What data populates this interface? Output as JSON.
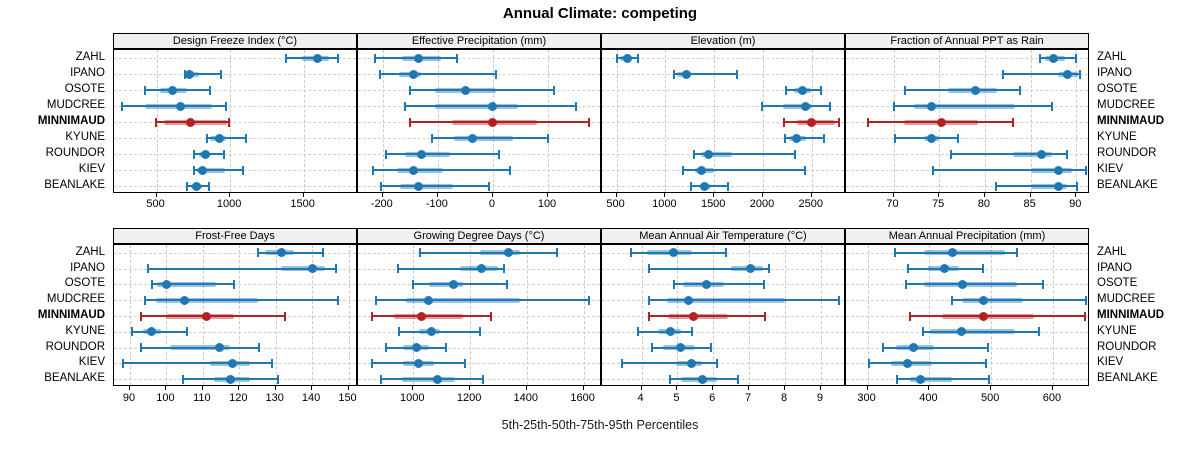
{
  "title": "Annual Climate: competing",
  "caption": "5th-25th-50th-75th-95th Percentiles",
  "stations": [
    "ZAHL",
    "IPANO",
    "OSOTE",
    "MUDCREE",
    "MINNIMAUD",
    "KYUNE",
    "ROUNDOR",
    "KIEV",
    "BEANLAKE"
  ],
  "highlight_station": "MINNIMAUD",
  "colors": {
    "normal": "#1f77b4",
    "highlight": "#b22222",
    "grid": "#cfcfcf",
    "strip_bg": "#f0f0f0",
    "border": "#000000"
  },
  "chart_data": [
    {
      "type": "scatter",
      "subtype": "percentile_interval_dotplot",
      "title": "Design Freeze Index (°C)",
      "row": 0,
      "col": 0,
      "xlim": [
        210,
        1870
      ],
      "xticks": [
        500,
        1000,
        1500
      ],
      "grid": "dashed",
      "series": [
        {
          "name": "ZAHL",
          "percentiles": [
            1380,
            1490,
            1595,
            1670,
            1735
          ]
        },
        {
          "name": "IPANO",
          "percentiles": [
            695,
            705,
            725,
            790,
            940
          ]
        },
        {
          "name": "OSOTE",
          "percentiles": [
            420,
            520,
            605,
            710,
            865
          ]
        },
        {
          "name": "MUDCREE",
          "percentiles": [
            265,
            420,
            665,
            875,
            975
          ]
        },
        {
          "name": "MINNIMAUD",
          "percentiles": [
            495,
            550,
            730,
            980,
            995
          ]
        },
        {
          "name": "KYUNE",
          "percentiles": [
            845,
            865,
            925,
            975,
            1105
          ]
        },
        {
          "name": "ROUNDOR",
          "percentiles": [
            755,
            790,
            830,
            865,
            960
          ]
        },
        {
          "name": "KIEV",
          "percentiles": [
            755,
            775,
            815,
            965,
            1090
          ]
        },
        {
          "name": "BEANLAKE",
          "percentiles": [
            705,
            735,
            770,
            810,
            855
          ]
        }
      ]
    },
    {
      "type": "scatter",
      "subtype": "percentile_interval_dotplot",
      "title": "Effective Precipitation (mm)",
      "row": 0,
      "col": 1,
      "xlim": [
        -245,
        198
      ],
      "xticks": [
        -200,
        -100,
        0,
        100
      ],
      "grid": "dashed",
      "series": [
        {
          "name": "ZAHL",
          "percentiles": [
            -215,
            -165,
            -135,
            -95,
            -65
          ]
        },
        {
          "name": "IPANO",
          "percentiles": [
            -205,
            -170,
            -145,
            -130,
            5
          ]
        },
        {
          "name": "OSOTE",
          "percentiles": [
            -150,
            -105,
            -50,
            5,
            110
          ]
        },
        {
          "name": "MUDCREE",
          "percentiles": [
            -160,
            -105,
            0,
            45,
            150
          ]
        },
        {
          "name": "MINNIMAUD",
          "percentiles": [
            -150,
            -75,
            0,
            80,
            175
          ]
        },
        {
          "name": "KYUNE",
          "percentiles": [
            -110,
            -70,
            -38,
            37,
            100
          ]
        },
        {
          "name": "ROUNDOR",
          "percentiles": [
            -195,
            -160,
            -130,
            -77,
            10
          ]
        },
        {
          "name": "KIEV",
          "percentiles": [
            -218,
            -175,
            -145,
            -90,
            30
          ]
        },
        {
          "name": "BEANLAKE",
          "percentiles": [
            -203,
            -168,
            -135,
            -72,
            -7
          ]
        }
      ]
    },
    {
      "type": "scatter",
      "subtype": "percentile_interval_dotplot",
      "title": "Elevation (m)",
      "row": 0,
      "col": 2,
      "xlim": [
        350,
        2850
      ],
      "xticks": [
        500,
        1000,
        1500,
        2000,
        2500
      ],
      "grid": "dashed",
      "series": [
        {
          "name": "ZAHL",
          "percentiles": [
            505,
            530,
            610,
            655,
            720
          ]
        },
        {
          "name": "IPANO",
          "percentiles": [
            1090,
            1120,
            1215,
            1260,
            1730
          ]
        },
        {
          "name": "OSOTE",
          "percentiles": [
            2230,
            2320,
            2400,
            2490,
            2590
          ]
        },
        {
          "name": "MUDCREE",
          "percentiles": [
            1990,
            2200,
            2430,
            2500,
            2690
          ]
        },
        {
          "name": "MINNIMAUD",
          "percentiles": [
            2210,
            2350,
            2500,
            2740,
            2780
          ]
        },
        {
          "name": "KYUNE",
          "percentiles": [
            2225,
            2270,
            2345,
            2440,
            2620
          ]
        },
        {
          "name": "ROUNDOR",
          "percentiles": [
            1290,
            1360,
            1445,
            1680,
            2330
          ]
        },
        {
          "name": "KIEV",
          "percentiles": [
            1180,
            1300,
            1370,
            1500,
            2430
          ]
        },
        {
          "name": "BEANLAKE",
          "percentiles": [
            1265,
            1350,
            1400,
            1470,
            1640
          ]
        }
      ]
    },
    {
      "type": "scatter",
      "subtype": "percentile_interval_dotplot",
      "title": "Fraction of Annual PPT as Rain",
      "row": 0,
      "col": 3,
      "xlim": [
        64.8,
        91.5
      ],
      "xticks": [
        70,
        75,
        80,
        85,
        90
      ],
      "grid": "dashed",
      "series": [
        {
          "name": "ZAHL",
          "percentiles": [
            86,
            86.6,
            87.5,
            88.8,
            90
          ]
        },
        {
          "name": "IPANO",
          "percentiles": [
            82,
            88,
            89,
            90.2,
            90.4
          ]
        },
        {
          "name": "OSOTE",
          "percentiles": [
            71.3,
            76,
            79,
            81.3,
            83.8
          ]
        },
        {
          "name": "MUDCREE",
          "percentiles": [
            70,
            72.2,
            74.1,
            83.3,
            87.3
          ]
        },
        {
          "name": "MINNIMAUD",
          "percentiles": [
            67.2,
            71.1,
            75.2,
            79.3,
            83.1
          ]
        },
        {
          "name": "KYUNE",
          "percentiles": [
            70.2,
            73.3,
            74.2,
            75,
            77.1
          ]
        },
        {
          "name": "ROUNDOR",
          "percentiles": [
            76.3,
            83.1,
            86.2,
            87.3,
            89
          ]
        },
        {
          "name": "KIEV",
          "percentiles": [
            74.3,
            85,
            88,
            89.5,
            91.1
          ]
        },
        {
          "name": "BEANLAKE",
          "percentiles": [
            81.2,
            85,
            88,
            89,
            90.1
          ]
        }
      ]
    },
    {
      "type": "scatter",
      "subtype": "percentile_interval_dotplot",
      "title": "Frost-Free Days",
      "row": 1,
      "col": 0,
      "xlim": [
        85.6,
        152.6
      ],
      "xticks": [
        90,
        100,
        110,
        120,
        130,
        140,
        150
      ],
      "grid": "dashed",
      "series": [
        {
          "name": "ZAHL",
          "percentiles": [
            125,
            127,
            131.5,
            135,
            143
          ]
        },
        {
          "name": "IPANO",
          "percentiles": [
            95,
            131.5,
            140,
            143.5,
            146.5
          ]
        },
        {
          "name": "OSOTE",
          "percentiles": [
            96,
            97.5,
            100,
            113.5,
            118.5
          ]
        },
        {
          "name": "MUDCREE",
          "percentiles": [
            94,
            97,
            105,
            125,
            147
          ]
        },
        {
          "name": "MINNIMAUD",
          "percentiles": [
            93,
            100,
            111,
            118.5,
            132.5
          ]
        },
        {
          "name": "KYUNE",
          "percentiles": [
            90.5,
            93.5,
            96,
            98.5,
            105.5
          ]
        },
        {
          "name": "ROUNDOR",
          "percentiles": [
            93,
            101,
            114.5,
            117.5,
            125.5
          ]
        },
        {
          "name": "KIEV",
          "percentiles": [
            88,
            112,
            118,
            123,
            129
          ]
        },
        {
          "name": "BEANLAKE",
          "percentiles": [
            104.5,
            113,
            117.5,
            123,
            130.5
          ]
        }
      ]
    },
    {
      "type": "scatter",
      "subtype": "percentile_interval_dotplot",
      "title": "Growing Degree Days (°C)",
      "row": 1,
      "col": 1,
      "xlim": [
        805,
        1665
      ],
      "xticks": [
        1000,
        1200,
        1400,
        1600
      ],
      "grid": "dashed",
      "series": [
        {
          "name": "ZAHL",
          "percentiles": [
            1025,
            1235,
            1335,
            1375,
            1505
          ]
        },
        {
          "name": "IPANO",
          "percentiles": [
            945,
            1165,
            1240,
            1300,
            1320
          ]
        },
        {
          "name": "OSOTE",
          "percentiles": [
            1000,
            1055,
            1140,
            1175,
            1330
          ]
        },
        {
          "name": "MUDCREE",
          "percentiles": [
            870,
            975,
            1055,
            1375,
            1620
          ]
        },
        {
          "name": "MINNIMAUD",
          "percentiles": [
            855,
            930,
            1030,
            1175,
            1275
          ]
        },
        {
          "name": "KYUNE",
          "percentiles": [
            950,
            1020,
            1065,
            1095,
            1235
          ]
        },
        {
          "name": "ROUNDOR",
          "percentiles": [
            905,
            965,
            1012,
            1055,
            1115
          ]
        },
        {
          "name": "KIEV",
          "percentiles": [
            855,
            965,
            1017,
            1072,
            1183
          ]
        },
        {
          "name": "BEANLAKE",
          "percentiles": [
            885,
            960,
            1085,
            1145,
            1245
          ]
        }
      ]
    },
    {
      "type": "scatter",
      "subtype": "percentile_interval_dotplot",
      "title": "Mean Annual Air Temperature (°C)",
      "row": 1,
      "col": 2,
      "xlim": [
        2.9,
        9.7
      ],
      "xticks": [
        4,
        5,
        6,
        7,
        8,
        9
      ],
      "grid": "dashed",
      "series": [
        {
          "name": "ZAHL",
          "percentiles": [
            3.7,
            4.15,
            4.9,
            5.4,
            6.35
          ]
        },
        {
          "name": "IPANO",
          "percentiles": [
            4.2,
            6.5,
            7.05,
            7.4,
            7.55
          ]
        },
        {
          "name": "OSOTE",
          "percentiles": [
            4.9,
            5.15,
            5.8,
            6.3,
            7.4
          ]
        },
        {
          "name": "MUDCREE",
          "percentiles": [
            4.2,
            4.7,
            5.3,
            8.0,
            9.5
          ]
        },
        {
          "name": "MINNIMAUD",
          "percentiles": [
            4.2,
            4.75,
            5.45,
            6.4,
            7.45
          ]
        },
        {
          "name": "KYUNE",
          "percentiles": [
            3.9,
            4.45,
            4.8,
            5.1,
            5.4
          ]
        },
        {
          "name": "ROUNDOR",
          "percentiles": [
            4.3,
            4.6,
            5.1,
            5.5,
            5.95
          ]
        },
        {
          "name": "KIEV",
          "percentiles": [
            3.45,
            4.95,
            5.4,
            5.7,
            6.1
          ]
        },
        {
          "name": "BEANLAKE",
          "percentiles": [
            4.8,
            5.1,
            5.7,
            6.1,
            6.7
          ]
        }
      ]
    },
    {
      "type": "scatter",
      "subtype": "percentile_interval_dotplot",
      "title": "Mean Annual Precipitation (mm)",
      "row": 1,
      "col": 3,
      "xlim": [
        265,
        660
      ],
      "xticks": [
        300,
        400,
        500,
        600
      ],
      "grid": "dashed",
      "series": [
        {
          "name": "ZAHL",
          "percentiles": [
            345,
            391,
            438,
            523,
            541
          ]
        },
        {
          "name": "IPANO",
          "percentiles": [
            365,
            397,
            424,
            448,
            487
          ]
        },
        {
          "name": "OSOTE",
          "percentiles": [
            362,
            391,
            454,
            542,
            584
          ]
        },
        {
          "name": "MUDCREE",
          "percentiles": [
            436,
            452,
            487,
            552,
            654
          ]
        },
        {
          "name": "MINNIMAUD",
          "percentiles": [
            368,
            421,
            487,
            569,
            652
          ]
        },
        {
          "name": "KYUNE",
          "percentiles": [
            389,
            401,
            452,
            539,
            577
          ]
        },
        {
          "name": "ROUNDOR",
          "percentiles": [
            325,
            346,
            375,
            408,
            494
          ]
        },
        {
          "name": "KIEV",
          "percentiles": [
            302,
            338,
            365,
            404,
            491
          ]
        },
        {
          "name": "BEANLAKE",
          "percentiles": [
            348,
            368,
            386,
            437,
            497
          ]
        }
      ]
    }
  ]
}
